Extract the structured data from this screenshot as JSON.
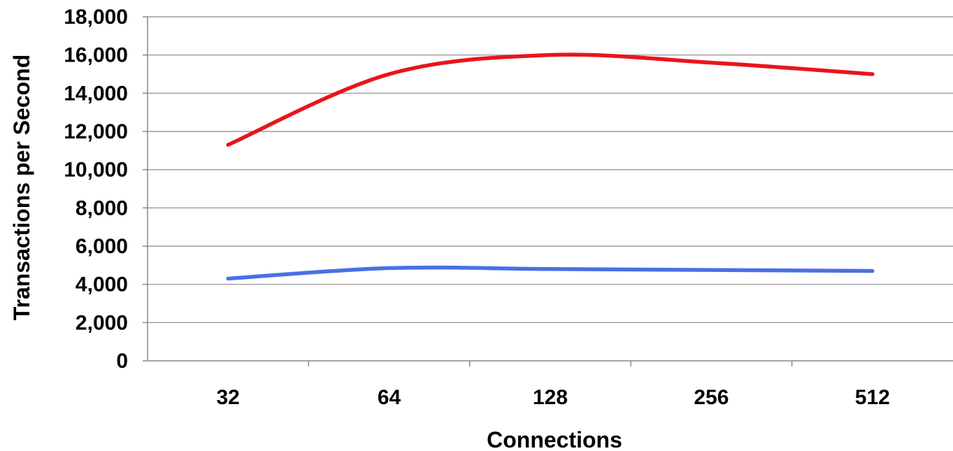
{
  "chart_data": {
    "type": "line",
    "title": "",
    "xlabel": "Connections",
    "ylabel": "Transactions per Second",
    "categories": [
      "32",
      "64",
      "128",
      "256",
      "512"
    ],
    "ylim": [
      0,
      18000
    ],
    "yticks": [
      0,
      2000,
      4000,
      6000,
      8000,
      10000,
      12000,
      14000,
      16000,
      18000
    ],
    "ytick_labels": [
      "0",
      "2,000",
      "4,000",
      "6,000",
      "8,000",
      "10,000",
      "12,000",
      "14,000",
      "16,000",
      "18,000"
    ],
    "grid": "horizontal",
    "legend": "none",
    "series": [
      {
        "color": "#e8151b",
        "values": [
          11300,
          15000,
          16000,
          15600,
          15000
        ]
      },
      {
        "color": "#4a6fe6",
        "values": [
          4300,
          4850,
          4800,
          4750,
          4700
        ]
      }
    ]
  }
}
